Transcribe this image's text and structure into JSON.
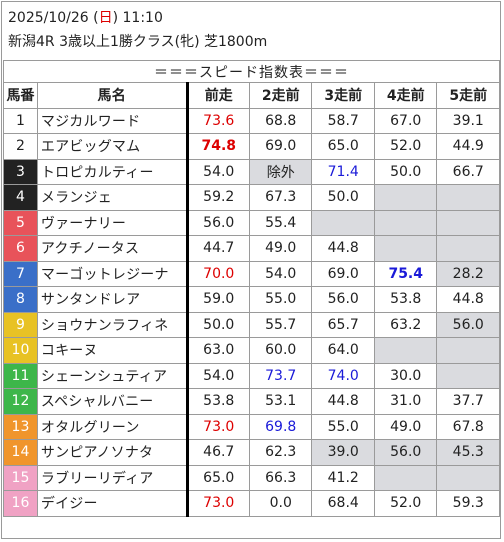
{
  "header": {
    "date_prefix": "2025/10/26 (",
    "day": "日",
    "date_suffix": ") 11:10",
    "race": "新潟4R 3歳以上1勝クラス(牝) 芝1800m"
  },
  "table": {
    "title": "＝＝＝スピード指数表＝＝＝",
    "columns": [
      "馬番",
      "馬名",
      "前走",
      "2走前",
      "3走前",
      "4走前",
      "5走前"
    ],
    "frame_colors": {
      "1": "#ffffff",
      "2": "#ffffff",
      "3": "#222222",
      "4": "#222222",
      "5": "#e8535a",
      "6": "#e8535a",
      "7": "#3a6fc8",
      "8": "#3a6fc8",
      "9": "#e8c224",
      "10": "#e8c224",
      "11": "#3db64a",
      "12": "#3db64a",
      "13": "#f0952c",
      "14": "#f0952c",
      "15": "#f0a2c4",
      "16": "#f0a2c4"
    },
    "rows": [
      {
        "num": "1",
        "name": "マジカルワード",
        "v": [
          "73.6",
          "68.8",
          "58.7",
          "67.0",
          "39.1"
        ],
        "style": [
          "red",
          "",
          "",
          "",
          ""
        ]
      },
      {
        "num": "2",
        "name": "エアビッグマム",
        "v": [
          "74.8",
          "69.0",
          "65.0",
          "52.0",
          "44.9"
        ],
        "style": [
          "red bold",
          "",
          "",
          "",
          ""
        ]
      },
      {
        "num": "3",
        "name": "トロピカルティー",
        "v": [
          "54.0",
          "除外",
          "71.4",
          "50.0",
          "66.7"
        ],
        "style": [
          "",
          "gray",
          "blue",
          "",
          ""
        ]
      },
      {
        "num": "4",
        "name": "メランジェ",
        "v": [
          "59.2",
          "67.3",
          "50.0",
          "",
          ""
        ],
        "style": [
          "",
          "",
          "",
          "gray",
          "gray"
        ]
      },
      {
        "num": "5",
        "name": "ヴァーナリー",
        "v": [
          "56.0",
          "55.4",
          "",
          "",
          ""
        ],
        "style": [
          "",
          "",
          "gray",
          "gray",
          "gray"
        ]
      },
      {
        "num": "6",
        "name": "アクチノータス",
        "v": [
          "44.7",
          "49.0",
          "44.8",
          "",
          ""
        ],
        "style": [
          "",
          "",
          "",
          "gray",
          "gray"
        ]
      },
      {
        "num": "7",
        "name": "マーゴットレジーナ",
        "v": [
          "70.0",
          "54.0",
          "69.0",
          "75.4",
          "28.2"
        ],
        "style": [
          "red",
          "",
          "",
          "blue bold",
          "gray"
        ]
      },
      {
        "num": "8",
        "name": "サンタンドレア",
        "v": [
          "59.0",
          "55.0",
          "56.0",
          "53.8",
          "44.8"
        ],
        "style": [
          "",
          "",
          "",
          "",
          ""
        ]
      },
      {
        "num": "9",
        "name": "ショウナンラフィネ",
        "v": [
          "50.0",
          "55.7",
          "65.7",
          "63.2",
          "56.0"
        ],
        "style": [
          "",
          "",
          "",
          "",
          "gray"
        ]
      },
      {
        "num": "10",
        "name": "コキーヌ",
        "v": [
          "63.0",
          "60.0",
          "64.0",
          "",
          ""
        ],
        "style": [
          "",
          "",
          "",
          "gray",
          "gray"
        ]
      },
      {
        "num": "11",
        "name": "シェーンシュティア",
        "v": [
          "54.0",
          "73.7",
          "74.0",
          "30.0",
          ""
        ],
        "style": [
          "",
          "blue",
          "blue",
          "",
          "gray"
        ]
      },
      {
        "num": "12",
        "name": "スペシャルバニー",
        "v": [
          "53.8",
          "53.1",
          "44.8",
          "31.0",
          "37.7"
        ],
        "style": [
          "",
          "",
          "",
          "",
          ""
        ]
      },
      {
        "num": "13",
        "name": "オタルグリーン",
        "v": [
          "73.0",
          "69.8",
          "55.0",
          "49.0",
          "67.8"
        ],
        "style": [
          "red",
          "blue",
          "",
          "",
          ""
        ]
      },
      {
        "num": "14",
        "name": "サンピアノソナタ",
        "v": [
          "46.7",
          "62.3",
          "39.0",
          "56.0",
          "45.3"
        ],
        "style": [
          "",
          "",
          "gray",
          "gray",
          "gray"
        ]
      },
      {
        "num": "15",
        "name": "ラブリーリディア",
        "v": [
          "65.0",
          "66.3",
          "41.2",
          "",
          ""
        ],
        "style": [
          "",
          "",
          "",
          "gray",
          "gray"
        ]
      },
      {
        "num": "16",
        "name": "デイジー",
        "v": [
          "73.0",
          "0.0",
          "68.4",
          "52.0",
          "59.3"
        ],
        "style": [
          "red",
          "",
          "",
          "",
          ""
        ]
      }
    ]
  }
}
